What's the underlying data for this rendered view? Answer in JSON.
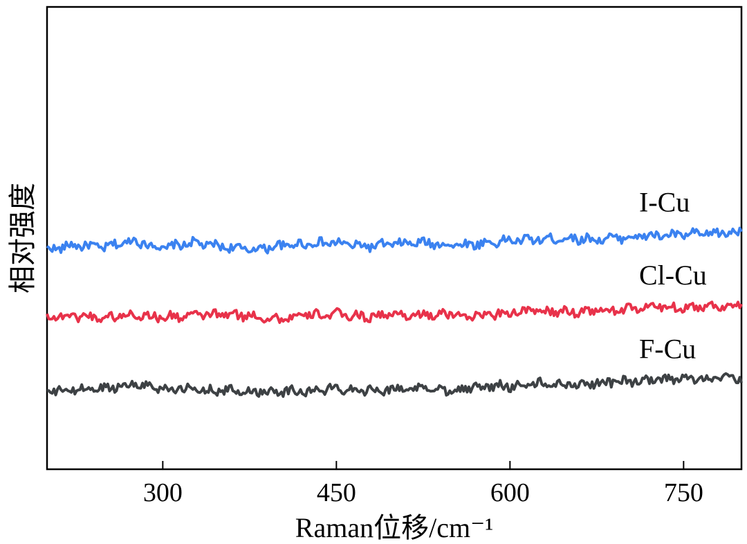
{
  "chart_data": {
    "type": "line",
    "title": "",
    "xlabel": "Raman位移/cm⁻¹",
    "ylabel": "相对强度",
    "xlim": [
      200,
      800
    ],
    "ylim": [
      0,
      1
    ],
    "xticks": [
      300,
      450,
      600,
      750
    ],
    "xtick_labels": [
      "300",
      "450",
      "600",
      "750"
    ],
    "y_ticks_shown": false,
    "grid": false,
    "legend": "none (series labeled inline, right side)",
    "series": [
      {
        "name": "I-Cu",
        "color": "#3b82f0",
        "x": [
          200,
          225,
          250,
          275,
          300,
          325,
          350,
          375,
          400,
          425,
          450,
          475,
          500,
          525,
          550,
          575,
          600,
          625,
          650,
          675,
          700,
          725,
          750,
          775,
          800
        ],
        "y": [
          0.475,
          0.485,
          0.48,
          0.495,
          0.478,
          0.49,
          0.482,
          0.475,
          0.483,
          0.488,
          0.49,
          0.482,
          0.487,
          0.49,
          0.485,
          0.488,
          0.495,
          0.497,
          0.5,
          0.497,
          0.502,
          0.505,
          0.507,
          0.51,
          0.513
        ]
      },
      {
        "name": "Cl-Cu",
        "color": "#e8324a",
        "x": [
          200,
          225,
          250,
          275,
          300,
          325,
          350,
          375,
          400,
          425,
          450,
          475,
          500,
          525,
          550,
          575,
          600,
          625,
          650,
          675,
          700,
          725,
          750,
          775,
          800
        ],
        "y": [
          0.33,
          0.332,
          0.328,
          0.335,
          0.328,
          0.333,
          0.335,
          0.332,
          0.325,
          0.333,
          0.335,
          0.33,
          0.335,
          0.333,
          0.335,
          0.332,
          0.34,
          0.342,
          0.34,
          0.343,
          0.345,
          0.352,
          0.35,
          0.353,
          0.355
        ]
      },
      {
        "name": "F-Cu",
        "color": "#3d4144",
        "x": [
          200,
          225,
          250,
          275,
          300,
          325,
          350,
          375,
          400,
          425,
          450,
          475,
          500,
          525,
          550,
          575,
          600,
          625,
          650,
          675,
          700,
          725,
          750,
          775,
          800
        ],
        "y": [
          0.168,
          0.172,
          0.175,
          0.185,
          0.175,
          0.172,
          0.17,
          0.168,
          0.17,
          0.168,
          0.175,
          0.172,
          0.173,
          0.175,
          0.172,
          0.178,
          0.18,
          0.185,
          0.183,
          0.187,
          0.19,
          0.192,
          0.195,
          0.198,
          0.195
        ]
      }
    ]
  }
}
